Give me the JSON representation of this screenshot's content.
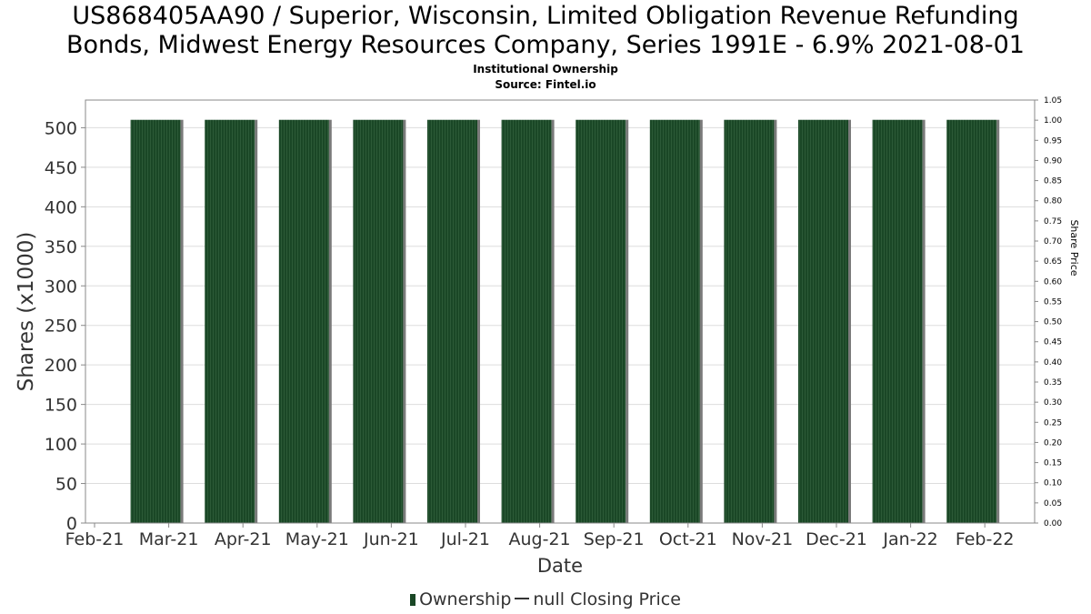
{
  "title_line1": "US868405AA90 / Superior, Wisconsin, Limited Obligation Revenue Refunding",
  "title_line2": "Bonds, Midwest Energy Resources Company, Series 1991E - 6.9% 2021-08-01",
  "subtitle_line1": "Institutional Ownership",
  "subtitle_line2": "Source: Fintel.io",
  "legend": {
    "ownership_label": "Ownership",
    "price_label": "null Closing Price"
  },
  "colors": {
    "bar": "#1a4726",
    "bar_shadow": "#7a7a7a",
    "grid": "#dddddd",
    "axis": "#888888",
    "text": "#333333"
  },
  "chart_data": {
    "type": "bar",
    "xlabel": "Date",
    "ylabel": "Shares (x1000)",
    "y2label": "Share Price",
    "ylim": [
      0,
      535
    ],
    "y2lim": [
      0,
      1.05
    ],
    "yticks": [
      0,
      50,
      100,
      150,
      200,
      250,
      300,
      350,
      400,
      450,
      500
    ],
    "y2ticks": [
      "0.00",
      "0.05",
      "0.10",
      "0.15",
      "0.20",
      "0.25",
      "0.30",
      "0.35",
      "0.40",
      "0.45",
      "0.50",
      "0.55",
      "0.60",
      "0.65",
      "0.70",
      "0.75",
      "0.80",
      "0.85",
      "0.90",
      "0.95",
      "1.00",
      "1.05"
    ],
    "x_tick_labels": [
      "Feb-21",
      "Mar-21",
      "Apr-21",
      "May-21",
      "Jun-21",
      "Jul-21",
      "Aug-21",
      "Sep-21",
      "Oct-21",
      "Nov-21",
      "Dec-21",
      "Jan-22",
      "Feb-22"
    ],
    "grid": true,
    "legend_position": "bottom",
    "series": [
      {
        "name": "Ownership",
        "categories": [
          "Mar-21",
          "Apr-21",
          "May-21",
          "Jun-21",
          "Jul-21",
          "Aug-21",
          "Sep-21",
          "Oct-21",
          "Nov-21",
          "Dec-21",
          "Jan-22",
          "Feb-22"
        ],
        "values": [
          510,
          510,
          510,
          510,
          510,
          510,
          510,
          510,
          510,
          510,
          510,
          510
        ]
      }
    ]
  }
}
